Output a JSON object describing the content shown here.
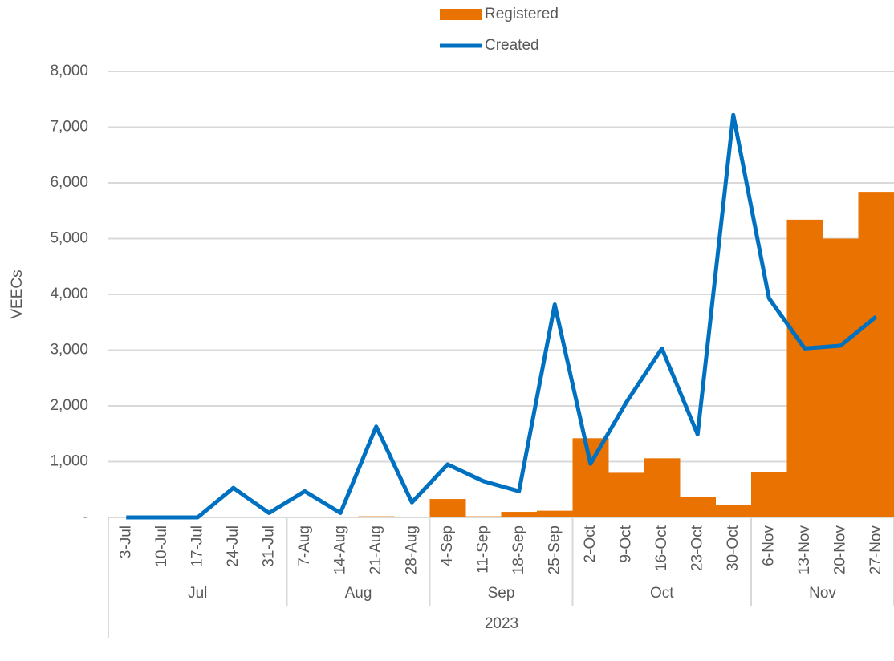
{
  "chart_data": {
    "type": "bar-line",
    "y_label": "VEECs",
    "categories": [
      "3-Jul",
      "10-Jul",
      "17-Jul",
      "24-Jul",
      "31-Jul",
      "7-Aug",
      "14-Aug",
      "21-Aug",
      "28-Aug",
      "4-Sep",
      "11-Sep",
      "18-Sep",
      "25-Sep",
      "2-Oct",
      "9-Oct",
      "16-Oct",
      "23-Oct",
      "30-Oct",
      "6-Nov",
      "13-Nov",
      "20-Nov",
      "27-Nov"
    ],
    "group_labels": [
      "Jul",
      "Aug",
      "Sep",
      "Oct",
      "Nov"
    ],
    "year": "2023",
    "series": [
      {
        "name": "Registered",
        "type": "bar",
        "color": "#e97200",
        "values": [
          0,
          0,
          0,
          0,
          0,
          0,
          0,
          20,
          0,
          330,
          20,
          100,
          120,
          1420,
          800,
          1060,
          360,
          230,
          820,
          5340,
          5000,
          5840
        ]
      },
      {
        "name": "Created",
        "type": "line",
        "color": "#0070c0",
        "values": [
          0,
          0,
          0,
          530,
          80,
          470,
          80,
          1630,
          270,
          950,
          650,
          470,
          3820,
          960,
          2060,
          3030,
          1490,
          7220,
          3930,
          3030,
          3080,
          3600
        ]
      }
    ],
    "ylim": [
      0,
      8000
    ],
    "yticks": [
      {
        "value": 0,
        "label": "-"
      },
      {
        "value": 1000,
        "label": "1,000"
      },
      {
        "value": 2000,
        "label": "2,000"
      },
      {
        "value": 3000,
        "label": "3,000"
      },
      {
        "value": 4000,
        "label": "4,000"
      },
      {
        "value": 5000,
        "label": "5,000"
      },
      {
        "value": 6000,
        "label": "6,000"
      },
      {
        "value": 7000,
        "label": "7,000"
      },
      {
        "value": 8000,
        "label": "8,000"
      }
    ],
    "grid": true,
    "legend": "top"
  }
}
